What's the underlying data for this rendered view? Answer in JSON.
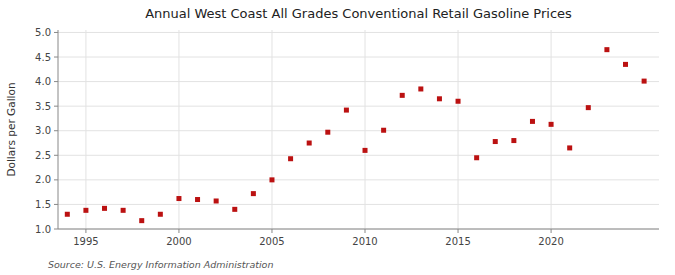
{
  "chart_data": {
    "type": "scatter",
    "title": "Annual West Coast All Grades Conventional Retail Gasoline Prices",
    "ylabel": "Dollars per Gallon",
    "source": "Source: U.S. Energy Information Administration",
    "x": [
      1994,
      1995,
      1996,
      1997,
      1998,
      1999,
      2000,
      2001,
      2002,
      2003,
      2004,
      2005,
      2006,
      2007,
      2008,
      2009,
      2010,
      2011,
      2012,
      2013,
      2014,
      2015,
      2016,
      2017,
      2018,
      2019,
      2020,
      2021,
      2022,
      2023,
      2024,
      2025
    ],
    "values": [
      1.3,
      1.38,
      1.42,
      1.38,
      1.17,
      1.3,
      1.62,
      1.6,
      1.57,
      1.4,
      1.72,
      2.0,
      2.43,
      2.75,
      2.97,
      3.42,
      2.6,
      3.01,
      3.72,
      3.85,
      3.65,
      3.6,
      2.45,
      2.78,
      2.8,
      3.19,
      3.13,
      2.65,
      3.47,
      4.65,
      4.35,
      4.01
    ],
    "color": "#bb1111",
    "marker": "square",
    "xlim": [
      1993.5,
      2025.8
    ],
    "ylim": [
      1.0,
      5.05
    ],
    "xticks": [
      1995,
      2000,
      2005,
      2010,
      2015,
      2020
    ],
    "yticks": [
      {
        "value": 1.0,
        "label": "1.0"
      },
      1.5,
      {
        "value": 2.0,
        "label": "2.0"
      },
      2.5,
      {
        "value": 3.0,
        "label": "3.0"
      },
      3.5,
      {
        "value": 4.0,
        "label": "4.0"
      },
      4.5,
      {
        "value": 5.0,
        "label": "5.0"
      }
    ],
    "grid": true
  }
}
